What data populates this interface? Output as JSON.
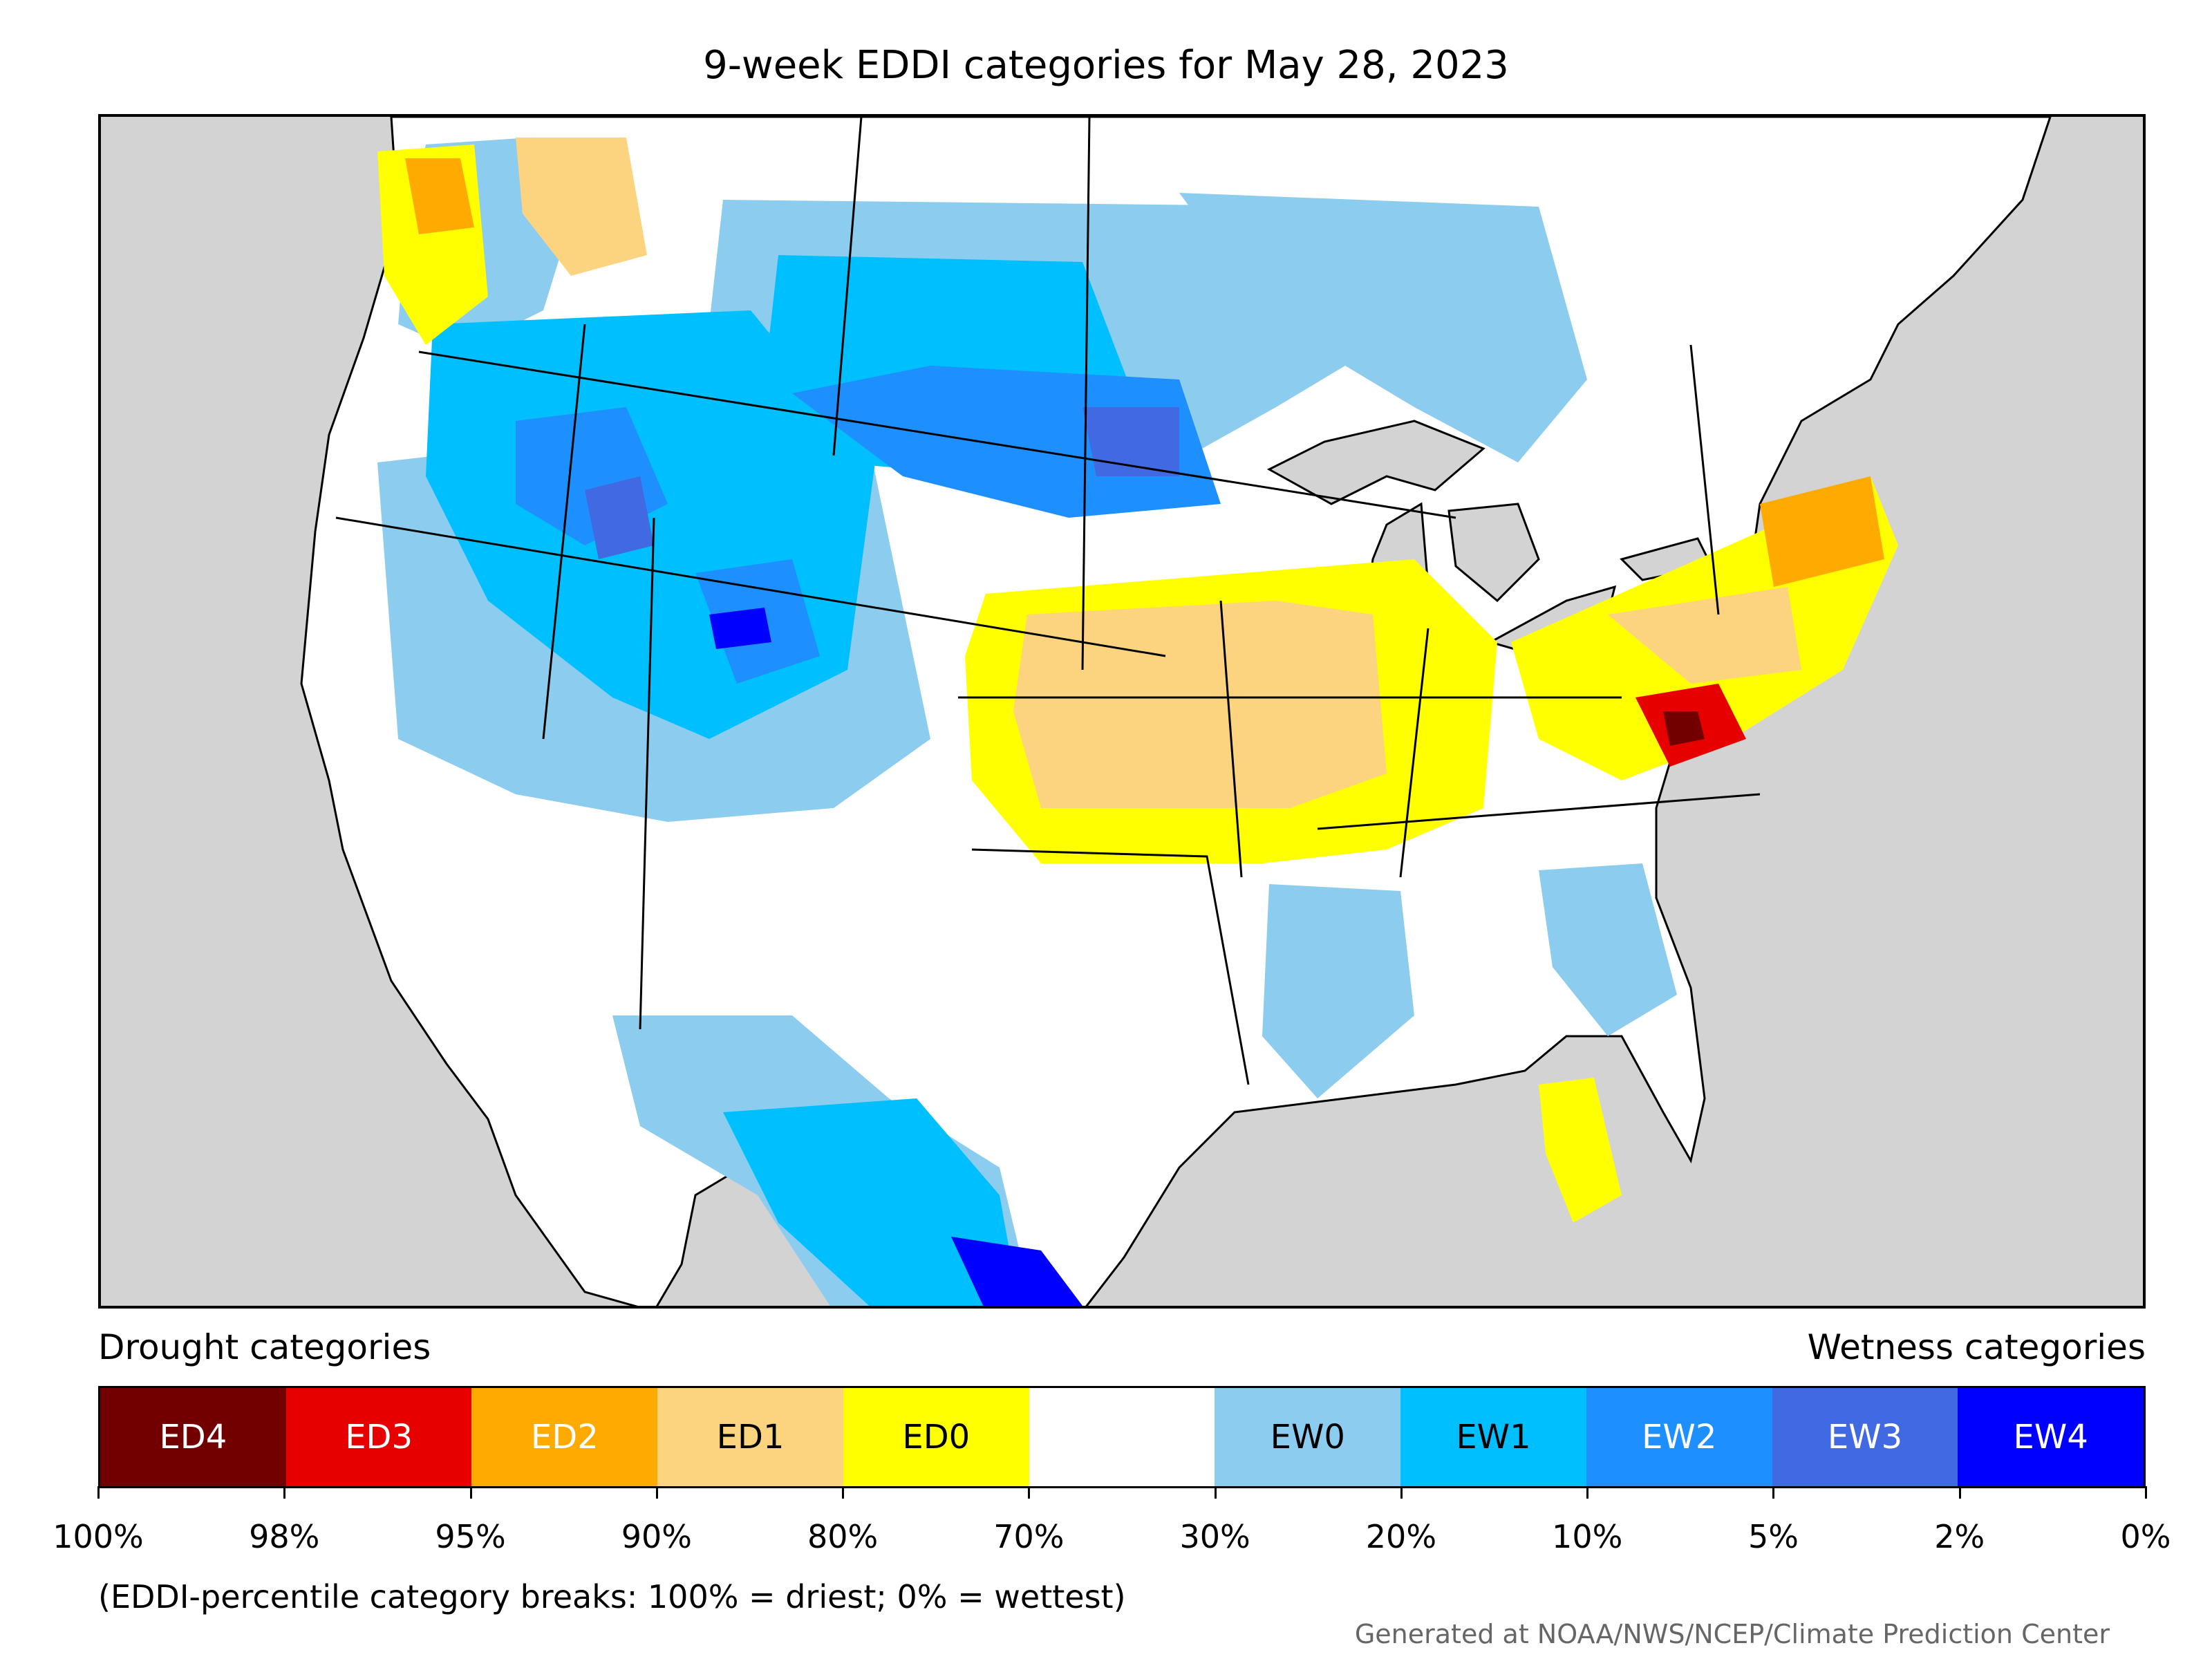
{
  "title": "9-week EDDI categories for May 28, 2023",
  "legend": {
    "left_heading": "Drought categories",
    "right_heading": "Wetness categories",
    "categories": [
      {
        "label": "ED4",
        "color": "#730000",
        "text_color": "#ffffff"
      },
      {
        "label": "ED3",
        "color": "#e60000",
        "text_color": "#ffffff"
      },
      {
        "label": "ED2",
        "color": "#ffaa00",
        "text_color": "#ffffff"
      },
      {
        "label": "ED1",
        "color": "#fcd37f",
        "text_color": "#000000"
      },
      {
        "label": "ED0",
        "color": "#ffff00",
        "text_color": "#000000"
      },
      {
        "label": "",
        "color": "#ffffff",
        "text_color": "#000000"
      },
      {
        "label": "EW0",
        "color": "#8ccdef",
        "text_color": "#000000"
      },
      {
        "label": "EW1",
        "color": "#00bfff",
        "text_color": "#000000"
      },
      {
        "label": "EW2",
        "color": "#1e8fff",
        "text_color": "#ffffff"
      },
      {
        "label": "EW3",
        "color": "#4169e1",
        "text_color": "#ffffff"
      },
      {
        "label": "EW4",
        "color": "#0000ff",
        "text_color": "#ffffff"
      }
    ],
    "breaks": [
      "100%",
      "98%",
      "95%",
      "90%",
      "80%",
      "70%",
      "30%",
      "20%",
      "10%",
      "5%",
      "2%",
      "0%"
    ]
  },
  "note": "(EDDI-percentile category breaks: 100% = driest; 0% = wettest)",
  "credit": "Generated at NOAA/NWS/NCEP/Climate Prediction Center"
}
